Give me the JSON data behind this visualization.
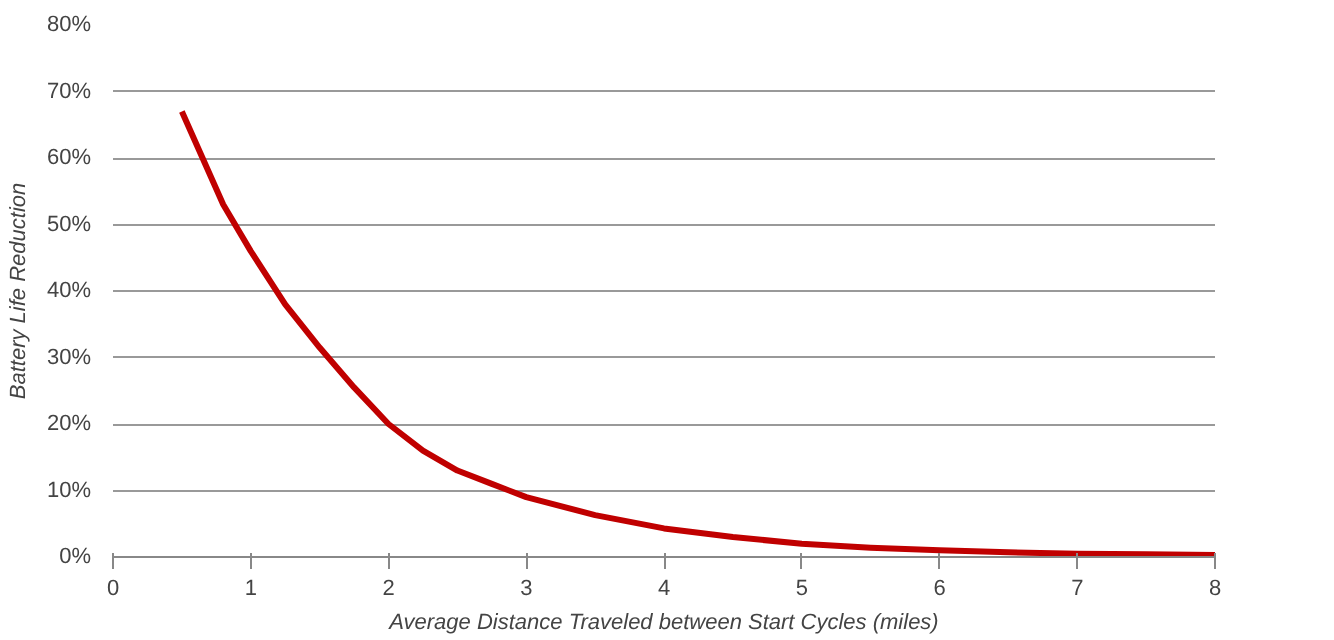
{
  "chart_data": {
    "type": "line",
    "xlabel": "Average Distance Traveled between Start Cycles (miles)",
    "ylabel": "Battery Life Reduction",
    "x": [
      0.5,
      0.65,
      0.8,
      1,
      1.25,
      1.5,
      1.75,
      2,
      2.25,
      2.5,
      2.75,
      3,
      3.5,
      4,
      4.5,
      5,
      5.5,
      6,
      6.5,
      7,
      7.5,
      8
    ],
    "series": [
      {
        "color": "#c00000",
        "values": [
          67,
          60,
          53,
          46,
          38,
          31.5,
          25.5,
          20,
          16,
          13,
          11,
          9,
          6.3,
          4.3,
          3,
          2,
          1.4,
          1,
          0.7,
          0.5,
          0.4,
          0.3
        ]
      }
    ],
    "xlim": [
      0,
      8
    ],
    "xticks": [
      0,
      1,
      2,
      3,
      4,
      5,
      6,
      7,
      8
    ],
    "ylim": [
      0,
      80
    ],
    "yticks": [
      {
        "value": 0,
        "label": "0%"
      },
      {
        "value": 10,
        "label": "10%"
      },
      {
        "value": 20,
        "label": "20%"
      },
      {
        "value": 30,
        "label": "30%"
      },
      {
        "value": 40,
        "label": "40%"
      },
      {
        "value": 50,
        "label": "50%"
      },
      {
        "value": 60,
        "label": "60%"
      },
      {
        "value": 70,
        "label": "70%"
      },
      {
        "value": 80,
        "label": "80%"
      }
    ],
    "grid": "y"
  }
}
